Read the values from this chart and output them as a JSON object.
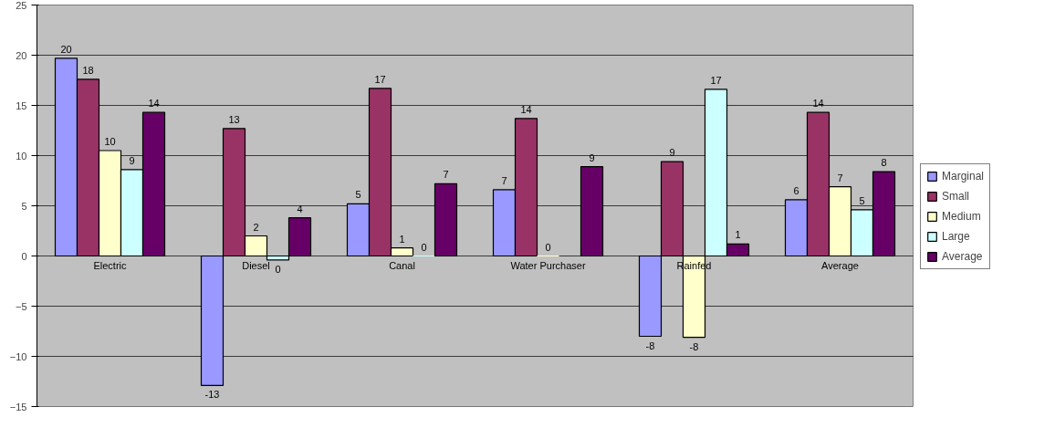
{
  "chart_data": {
    "type": "bar",
    "categories": [
      "Electric",
      "Diesel",
      "Canal",
      "Water Purchaser",
      "Rainfed",
      "Average"
    ],
    "series": [
      {
        "name": "Marginal",
        "color": "#9999ff",
        "values": [
          19.7,
          -12.9,
          5.2,
          6.6,
          -8.0,
          5.6
        ],
        "value_labels": [
          "20",
          "-13",
          "5",
          "7",
          "-8",
          "6"
        ]
      },
      {
        "name": "Small",
        "color": "#993366",
        "values": [
          17.6,
          12.7,
          16.7,
          13.7,
          9.4,
          14.3
        ],
        "value_labels": [
          "18",
          "13",
          "17",
          "14",
          "9",
          "14"
        ]
      },
      {
        "name": "Medium",
        "color": "#ffffcc",
        "values": [
          10.5,
          2.0,
          0.8,
          0,
          -8.1,
          6.9
        ],
        "value_labels": [
          "10",
          "2",
          "1",
          "0",
          "-8",
          "7"
        ]
      },
      {
        "name": "Large",
        "color": "#ccffff",
        "values": [
          8.6,
          -0.4,
          0,
          null,
          16.6,
          4.6
        ],
        "value_labels": [
          "9",
          "0",
          "0",
          null,
          "17",
          "5"
        ]
      },
      {
        "name": "Average",
        "color": "#660066",
        "values": [
          14.3,
          3.8,
          7.2,
          8.9,
          1.2,
          8.4
        ],
        "value_labels": [
          "14",
          "4",
          "7",
          "9",
          "1",
          "8"
        ]
      }
    ],
    "ylim": [
      -15,
      25
    ],
    "yticks": [
      -15,
      -10,
      -5,
      0,
      5,
      10,
      15,
      20,
      25
    ],
    "grid": "y",
    "legend": "right"
  }
}
